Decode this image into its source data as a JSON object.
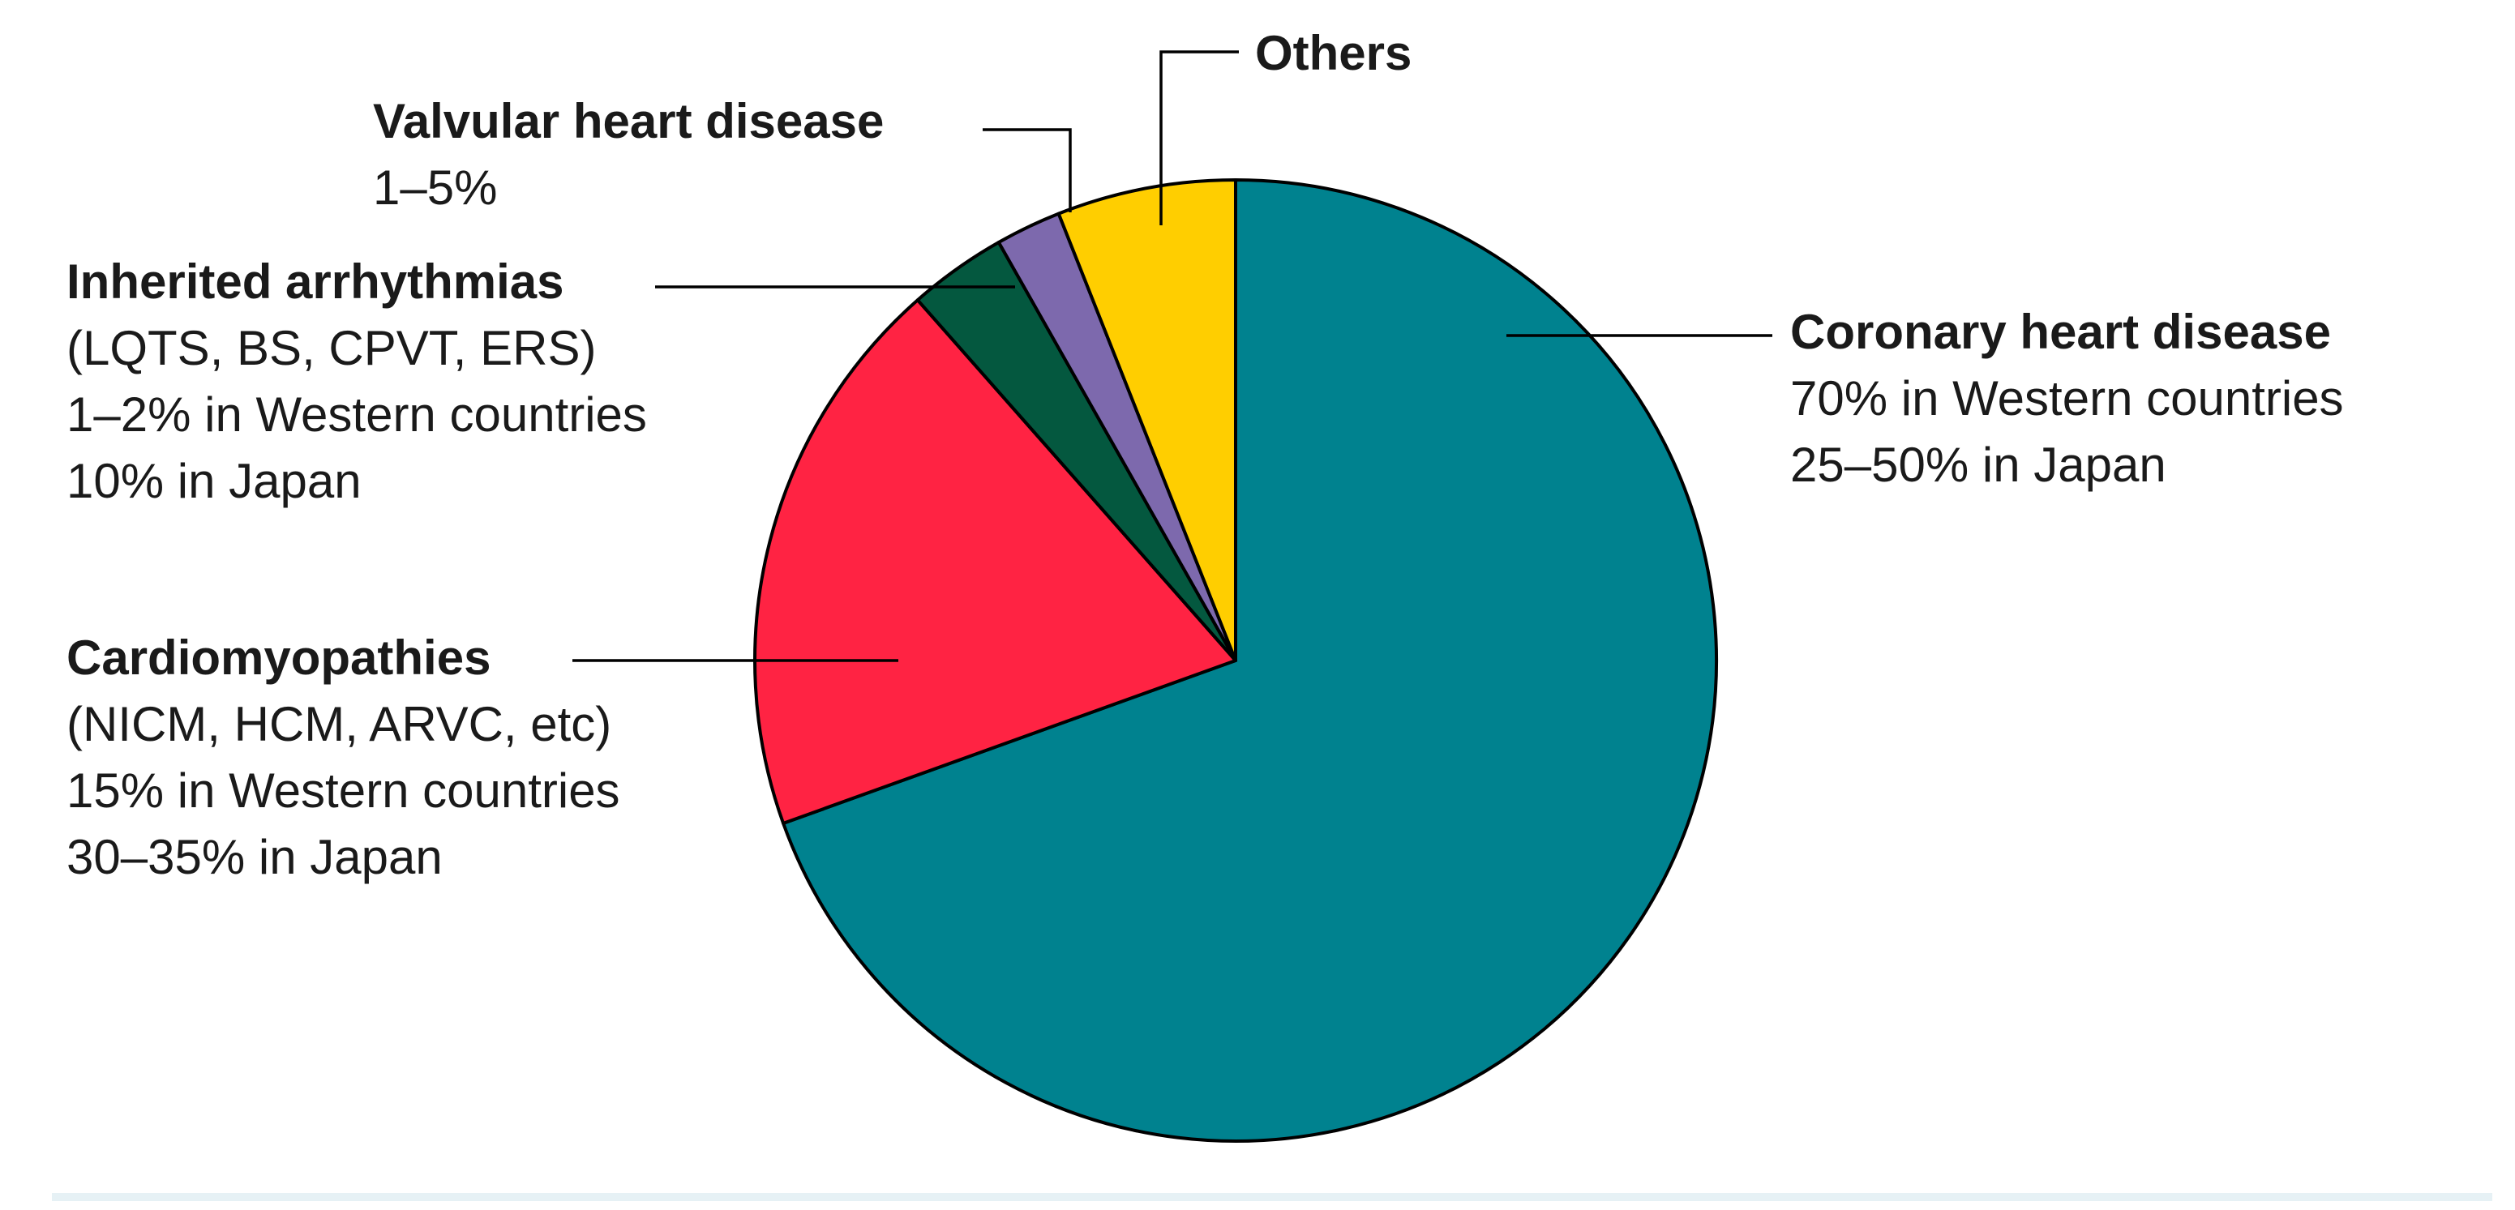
{
  "chart_data": {
    "type": "pie",
    "start": "12 o'clock",
    "direction": "clockwise",
    "slices": [
      {
        "key": "coronary",
        "label": "Coronary heart disease",
        "detail": [
          "70% in Western countries",
          "25–50% in Japan"
        ],
        "value": 69.5,
        "color": "#00828f"
      },
      {
        "key": "cardiomyopathies",
        "label": "Cardiomyopathies",
        "detail": [
          "(NICM, HCM, ARVC, etc)",
          "15% in Western countries",
          "30–35% in Japan"
        ],
        "value": 19.0,
        "color": "#ff2343"
      },
      {
        "key": "inherited",
        "label": "Inherited arrhythmias",
        "detail": [
          "(LQTS, BS, CPVT, ERS)",
          "1–2% in Western countries",
          "10% in Japan"
        ],
        "value": 3.3,
        "color": "#04583f"
      },
      {
        "key": "valvular",
        "label": "Valvular heart disease",
        "detail": [
          "1–5%"
        ],
        "value": 2.2,
        "color": "#7d69ad"
      },
      {
        "key": "others",
        "label": "Others",
        "detail": [],
        "value": 6.0,
        "color": "#ffce00"
      }
    ]
  }
}
